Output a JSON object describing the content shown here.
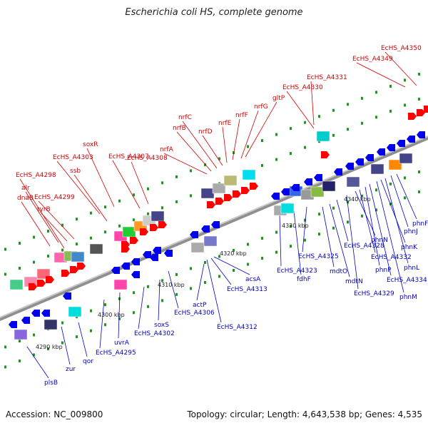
{
  "title": "Escherichia coli HS, complete genome",
  "footer": {
    "accession": "Accession: NC_009800",
    "summary": "Topology: circular; Length: 4,643,538 bp; Genes: 4,535"
  },
  "colors": {
    "backbone": "#8a8a8a",
    "forward_label": "#d40000",
    "reverse_label": "#0000cc",
    "forward_arrow": "#ff0000",
    "reverse_arrow": "#0000ee",
    "tick_dot": "#2e8b2e"
  },
  "ticks": [
    "4290 kbp",
    "4300 kbp",
    "4310 kbp",
    "4320 kbp",
    "4330 kbp",
    "4340 kbp"
  ],
  "forward_labels": [
    "dnaB",
    "alr",
    "tyrB",
    "EcHS_A4299",
    "EcHS_A4298",
    "ssb",
    "EcHS_A4303",
    "soxR",
    "EcHS_A4307",
    "EcHS_A4308",
    "nrfA",
    "nrfB",
    "nrfC",
    "nrfD",
    "nrfE",
    "nrfF",
    "nrfG",
    "gltP",
    "EcHS_A4330",
    "EcHS_A4331",
    "EcHS_A4349",
    "EcHS_A4350"
  ],
  "reverse_labels": [
    "plsB",
    "zur",
    "qor",
    "EcHS_A4295",
    "uvrA",
    "EcHS_A4302",
    "soxS",
    "EcHS_A4306",
    "actP",
    "EcHS_A4312",
    "EcHS_A4313",
    "acsA",
    "EcHS_A4323",
    "fdhF",
    "EcHS_A4325",
    "mdtO",
    "mdtN",
    "EcHS_A4328",
    "EcHS_A4329",
    "phnN",
    "EcHS_A4332",
    "phnP",
    "EcHS_A4334",
    "phnM",
    "phnK",
    "phnL",
    "phnJ",
    "phnF"
  ]
}
